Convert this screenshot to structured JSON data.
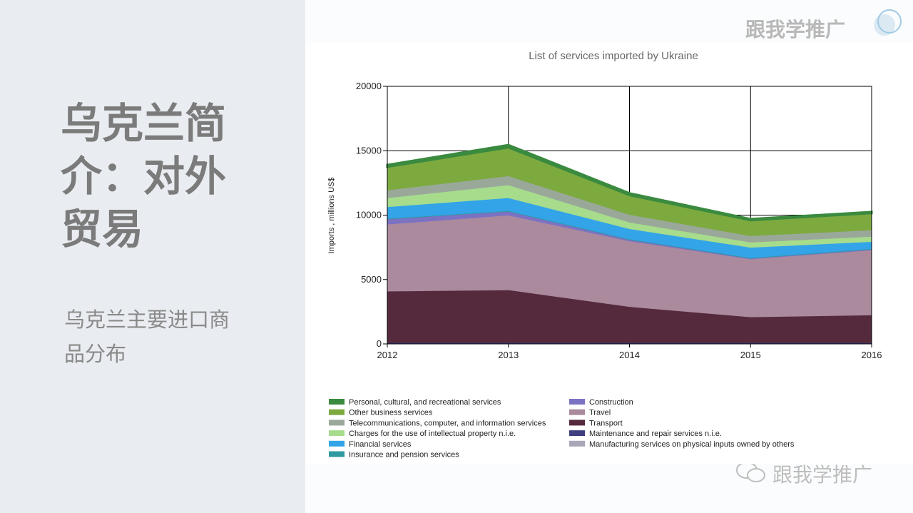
{
  "slide": {
    "title": "乌克兰简介：对外贸易",
    "subtitle": "乌克兰主要进口商品分布",
    "logo": "跟我学推广",
    "watermark": "跟我学推广"
  },
  "chart_data": {
    "type": "stacked_area",
    "title": "List of services imported by Ukraine",
    "y_label": "Imports , millions US$",
    "x": [
      2012,
      2013,
      2014,
      2015,
      2016
    ],
    "xlim": [
      2012,
      2016
    ],
    "xticks": [
      2012,
      2013,
      2014,
      2015,
      2016
    ],
    "ylim": [
      0,
      20000
    ],
    "yticks": [
      0,
      5000,
      10000,
      15000,
      20000
    ],
    "grid": true,
    "series": [
      {
        "name": "Personal, cultural, and recreational services",
        "color": "#3a8a3f",
        "values": [
          150,
          200,
          150,
          100,
          100
        ]
      },
      {
        "name": "Other business services",
        "color": "#7daa3f",
        "values": [
          1800,
          2200,
          1500,
          1200,
          1300
        ]
      },
      {
        "name": "Telecommunications, computer, and information services",
        "color": "#9aa89a",
        "values": [
          600,
          700,
          600,
          500,
          500
        ]
      },
      {
        "name": "Charges for the use of intellectual property n.i.e.",
        "color": "#a6dc8c",
        "values": [
          700,
          1000,
          500,
          400,
          400
        ]
      },
      {
        "name": "Financial services",
        "color": "#33a4e8",
        "values": [
          900,
          1000,
          800,
          800,
          550
        ]
      },
      {
        "name": "Insurance and pension services",
        "color": "#2f9aa0",
        "values": [
          50,
          50,
          50,
          50,
          50
        ]
      },
      {
        "name": "Construction",
        "color": "#7b72c4",
        "values": [
          400,
          300,
          100,
          50,
          50
        ]
      },
      {
        "name": "Travel",
        "color": "#ab8a9e",
        "values": [
          5200,
          5800,
          5100,
          4500,
          5050
        ]
      },
      {
        "name": "Transport",
        "color": "#552a3d",
        "values": [
          4000,
          4100,
          2800,
          2000,
          2150
        ]
      },
      {
        "name": "Maintenance and repair services n.i.e.",
        "color": "#3f3f7f",
        "values": [
          50,
          50,
          50,
          50,
          50
        ]
      },
      {
        "name": "Manufacturing services on physical inputs owned by others",
        "color": "#a9a6b8",
        "values": [
          50,
          50,
          50,
          50,
          50
        ]
      }
    ]
  }
}
